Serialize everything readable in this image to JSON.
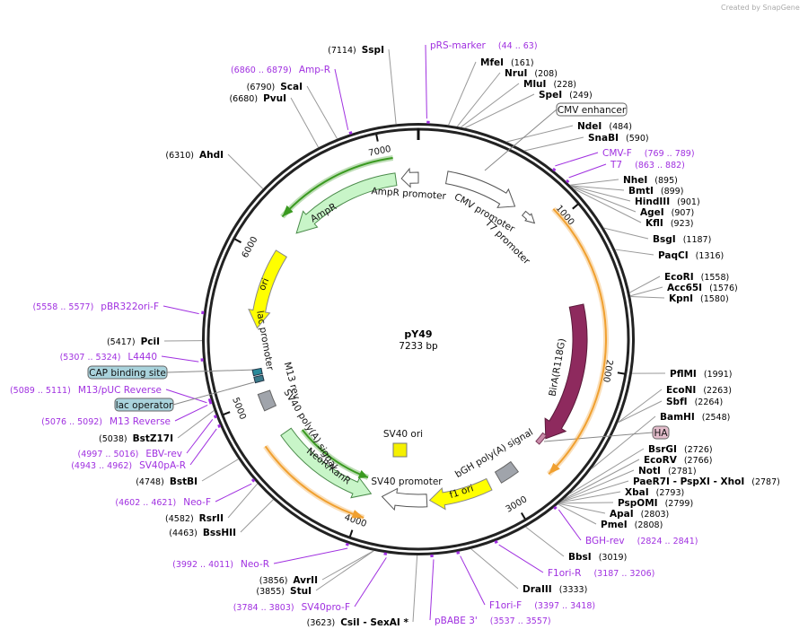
{
  "watermark": "Created by SnapGene",
  "map": {
    "name": "pY49",
    "size": "7233 bp"
  },
  "ticks": [
    "1000",
    "2000",
    "3000",
    "4000",
    "5000",
    "6000",
    "7000"
  ],
  "enzymes": [
    {
      "name": "SspI",
      "pos": "7114"
    },
    {
      "name": "MfeI",
      "pos": "161"
    },
    {
      "name": "NruI",
      "pos": "208"
    },
    {
      "name": "MluI",
      "pos": "228"
    },
    {
      "name": "SpeI",
      "pos": "249"
    },
    {
      "name": "NdeI",
      "pos": "484"
    },
    {
      "name": "SnaBI",
      "pos": "590"
    },
    {
      "name": "NheI",
      "pos": "895"
    },
    {
      "name": "BmtI",
      "pos": "899"
    },
    {
      "name": "HindIII",
      "pos": "901"
    },
    {
      "name": "AgeI",
      "pos": "907"
    },
    {
      "name": "KflI",
      "pos": "923"
    },
    {
      "name": "BsgI",
      "pos": "1187"
    },
    {
      "name": "PaqCI",
      "pos": "1316"
    },
    {
      "name": "EcoRI",
      "pos": "1558"
    },
    {
      "name": "Acc65I",
      "pos": "1576"
    },
    {
      "name": "KpnI",
      "pos": "1580"
    },
    {
      "name": "PflMI",
      "pos": "1991"
    },
    {
      "name": "EcoNI",
      "pos": "2263"
    },
    {
      "name": "SbfI",
      "pos": "2264"
    },
    {
      "name": "BamHI",
      "pos": "2548"
    },
    {
      "name": "BsrGI",
      "pos": "2726"
    },
    {
      "name": "EcoRV",
      "pos": "2766"
    },
    {
      "name": "NotI",
      "pos": "2781"
    },
    {
      "name": "PaeR7I - PspXI - XhoI",
      "pos": "2787"
    },
    {
      "name": "XbaI",
      "pos": "2793"
    },
    {
      "name": "PspOMI",
      "pos": "2799"
    },
    {
      "name": "ApaI",
      "pos": "2803"
    },
    {
      "name": "PmeI",
      "pos": "2808"
    },
    {
      "name": "BbsI",
      "pos": "3019"
    },
    {
      "name": "DraIII",
      "pos": "3333"
    },
    {
      "name": "CsiI - SexAI *",
      "pos": "3623"
    },
    {
      "name": "StuI",
      "pos": "3855"
    },
    {
      "name": "AvrII",
      "pos": "3856"
    },
    {
      "name": "BssHII",
      "pos": "4463"
    },
    {
      "name": "RsrII",
      "pos": "4582"
    },
    {
      "name": "BstBI",
      "pos": "4748"
    },
    {
      "name": "BstZ17I",
      "pos": "5038"
    },
    {
      "name": "PciI",
      "pos": "5417"
    },
    {
      "name": "AhdI",
      "pos": "6310"
    },
    {
      "name": "PvuI",
      "pos": "6680"
    },
    {
      "name": "ScaI",
      "pos": "6790"
    }
  ],
  "primers": [
    {
      "name": "pRS-marker",
      "range": "(44 .. 63)"
    },
    {
      "name": "CMV-F",
      "range": "(769 .. 789)"
    },
    {
      "name": "T7",
      "range": "(863 .. 882)"
    },
    {
      "name": "BGH-rev",
      "range": "(2824 .. 2841)"
    },
    {
      "name": "F1ori-R",
      "range": "(3187 .. 3206)"
    },
    {
      "name": "F1ori-F",
      "range": "(3397 .. 3418)"
    },
    {
      "name": "pBABE 3'",
      "range": "(3537 .. 3557)"
    },
    {
      "name": "SV40pro-F",
      "range": "(3784 .. 3803)"
    },
    {
      "name": "Neo-R",
      "range": "(3992 .. 4011)"
    },
    {
      "name": "Neo-F",
      "range": "(4602 .. 4621)"
    },
    {
      "name": "SV40pA-R",
      "range": "(4943 .. 4962)"
    },
    {
      "name": "EBV-rev",
      "range": "(4997 .. 5016)"
    },
    {
      "name": "M13 Reverse",
      "range": "(5076 .. 5092)"
    },
    {
      "name": "M13/pUC Reverse",
      "range": "(5089 .. 5111)"
    },
    {
      "name": "L4440",
      "range": "(5307 .. 5324)"
    },
    {
      "name": "pBR322ori-F",
      "range": "(5558 .. 5577)"
    },
    {
      "name": "Amp-R",
      "range": "(6860 .. 6879)"
    }
  ],
  "feature_boxes": [
    {
      "label": "CMV enhancer",
      "color": "#ffffff"
    },
    {
      "label": "HA",
      "color": "#e3bccb"
    },
    {
      "label": "CAP binding site",
      "color": "#a9d3dc"
    },
    {
      "label": "lac operator",
      "color": "#a9d3dc"
    }
  ],
  "features": {
    "amp_promoter": "AmpR promoter",
    "ampr": "AmpR",
    "cmv_promoter": "CMV promoter",
    "t7_promoter": "T7 promoter",
    "bira": "BirA(R118G)",
    "bgh": "bGH poly(A) signal",
    "f1ori": "f1 ori",
    "sv40_promoter": "SV40 promoter",
    "sv40_ori": "SV40 ori",
    "neor": "NeoR/KanR",
    "sv40_polya": "SV40 poly(A) signal",
    "m13rev": "M13 rev",
    "lac_promoter": "lac promoter",
    "ori": "ori"
  },
  "colors": {
    "primer": "#a030e0",
    "ampr": "#c8f5c8",
    "ori": "#ffff00",
    "bira": "#8e2a5e",
    "orf_orange": "#f0a030",
    "orf_green": "#3a9a20",
    "gray": "#a0a4ab"
  }
}
